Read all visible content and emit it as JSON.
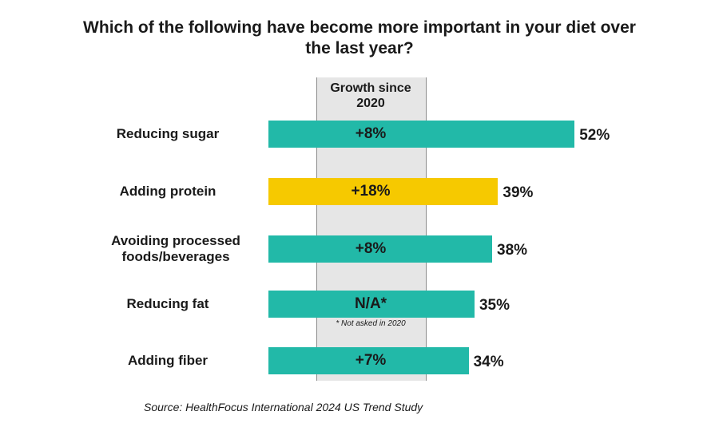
{
  "title": "Which of the following have become more important in your diet over the last year?",
  "growth_header": "Growth since 2020",
  "footnote": "* Not asked in 2020",
  "source": "Source: HealthFocus International 2024 US Trend Study",
  "colors": {
    "teal": "#22b9a8",
    "gold": "#f6c900",
    "column_bg": "#e6e6e6"
  },
  "chart_data": {
    "type": "bar",
    "orientation": "horizontal",
    "title": "Which of the following have become more important in your diet over the last year?",
    "categories": [
      "Reducing sugar",
      "Adding protein",
      "Avoiding processed foods/beverages",
      "Reducing fat",
      "Adding fiber"
    ],
    "values": [
      52,
      39,
      38,
      35,
      34
    ],
    "value_labels": [
      "52%",
      "39%",
      "38%",
      "35%",
      "34%"
    ],
    "growth_since_2020": [
      "+8%",
      "+18%",
      "+8%",
      "N/A*",
      "+7%"
    ],
    "highlight": [
      false,
      true,
      false,
      false,
      false
    ],
    "unit": "%"
  }
}
